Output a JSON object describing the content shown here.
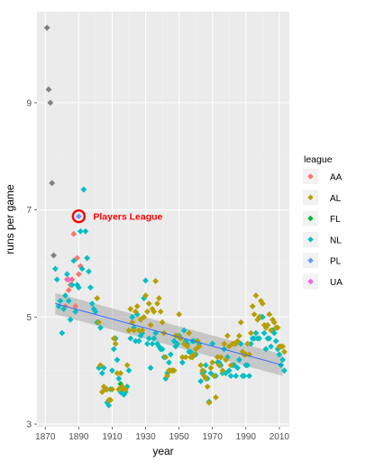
{
  "chart_data": {
    "type": "scatter",
    "xlabel": "year",
    "ylabel": "runs per game",
    "xlim": [
      1865,
      2016
    ],
    "ylim": [
      2.95,
      10.7
    ],
    "x_ticks": [
      1870,
      1890,
      1910,
      1930,
      1950,
      1970,
      1990,
      2010
    ],
    "y_ticks": [
      3,
      5,
      7,
      9
    ],
    "grid": true,
    "legend_placement": "right",
    "legend": {
      "title": "league",
      "items": [
        {
          "label": "AA",
          "color": "#F8766D"
        },
        {
          "label": "AL",
          "color": "#B79F00"
        },
        {
          "label": "FL",
          "color": "#00BA38"
        },
        {
          "label": "NL",
          "color": "#00BFC4"
        },
        {
          "label": "PL",
          "color": "#619CFF"
        },
        {
          "label": "UA",
          "color": "#F564E3"
        }
      ]
    },
    "colors": {
      "unassigned": "#808080",
      "trend_line": "#3366FF",
      "confidence_band": "#999999",
      "annotation": "#FF0000",
      "panel_background": "#EBEBEB",
      "grid": "#FFFFFF"
    },
    "annotation": {
      "label": "Players League",
      "x": 1890,
      "y": 6.88
    },
    "trend": {
      "x": [
        1876,
        2012
      ],
      "y": [
        5.25,
        4.1
      ],
      "band_halfwidth_ends": 0.2
    },
    "series": [
      {
        "name": "",
        "league": "none",
        "points": [
          [
            1871,
            10.4
          ],
          [
            1872,
            9.25
          ],
          [
            1873,
            9.0
          ],
          [
            1874,
            7.5
          ],
          [
            1875,
            6.15
          ]
        ]
      },
      {
        "name": "",
        "league": "AA",
        "points": [
          [
            1882,
            5.2
          ],
          [
            1883,
            5.7
          ],
          [
            1884,
            5.5
          ],
          [
            1885,
            5.6
          ],
          [
            1886,
            5.7
          ],
          [
            1887,
            6.55
          ],
          [
            1888,
            5.2
          ],
          [
            1889,
            6.1
          ],
          [
            1890,
            5.8
          ],
          [
            1891,
            5.95
          ]
        ]
      },
      {
        "name": "",
        "league": "UA",
        "points": [
          [
            1884,
            5.7
          ]
        ]
      },
      {
        "name": "",
        "league": "PL",
        "points": [
          [
            1890,
            6.88
          ]
        ]
      },
      {
        "name": "",
        "league": "FL",
        "points": [
          [
            1914,
            3.65
          ],
          [
            1915,
            3.75
          ]
        ]
      },
      {
        "name": "",
        "league": "NL",
        "points": [
          [
            1876,
            5.9
          ],
          [
            1877,
            5.7
          ],
          [
            1878,
            5.2
          ],
          [
            1879,
            5.3
          ],
          [
            1880,
            4.7
          ],
          [
            1881,
            5.15
          ],
          [
            1882,
            5.4
          ],
          [
            1883,
            5.8
          ],
          [
            1884,
            5.3
          ],
          [
            1885,
            4.95
          ],
          [
            1886,
            5.6
          ],
          [
            1887,
            6.05
          ],
          [
            1888,
            5.1
          ],
          [
            1889,
            5.6
          ],
          [
            1890,
            5.55
          ],
          [
            1891,
            6.6
          ],
          [
            1892,
            5.9
          ],
          [
            1893,
            7.38
          ],
          [
            1894,
            6.6
          ],
          [
            1895,
            6.1
          ],
          [
            1896,
            5.85
          ],
          [
            1897,
            5.55
          ],
          [
            1898,
            5.25
          ],
          [
            1899,
            5.15
          ],
          [
            1900,
            5.1
          ],
          [
            1901,
            4.9
          ],
          [
            1902,
            4.05
          ],
          [
            1903,
            4.8
          ],
          [
            1904,
            3.95
          ],
          [
            1905,
            4.05
          ],
          [
            1906,
            3.65
          ],
          [
            1907,
            3.4
          ],
          [
            1908,
            3.35
          ],
          [
            1909,
            3.65
          ],
          [
            1910,
            4.0
          ],
          [
            1911,
            4.4
          ],
          [
            1912,
            4.6
          ],
          [
            1913,
            4.2
          ],
          [
            1914,
            3.85
          ],
          [
            1915,
            3.6
          ],
          [
            1916,
            3.6
          ],
          [
            1917,
            3.55
          ],
          [
            1918,
            3.6
          ],
          [
            1919,
            3.7
          ],
          [
            1920,
            4.0
          ],
          [
            1921,
            4.6
          ],
          [
            1922,
            5.0
          ],
          [
            1923,
            4.8
          ],
          [
            1924,
            4.55
          ],
          [
            1925,
            5.05
          ],
          [
            1926,
            4.55
          ],
          [
            1927,
            4.65
          ],
          [
            1928,
            4.7
          ],
          [
            1929,
            5.35
          ],
          [
            1930,
            5.68
          ],
          [
            1931,
            4.5
          ],
          [
            1932,
            4.6
          ],
          [
            1933,
            4.05
          ],
          [
            1934,
            4.5
          ],
          [
            1935,
            4.6
          ],
          [
            1936,
            4.7
          ],
          [
            1937,
            4.5
          ],
          [
            1938,
            4.45
          ],
          [
            1939,
            4.4
          ],
          [
            1940,
            4.4
          ],
          [
            1941,
            4.25
          ],
          [
            1942,
            3.85
          ],
          [
            1943,
            3.95
          ],
          [
            1944,
            4.15
          ],
          [
            1945,
            4.3
          ],
          [
            1946,
            4.0
          ],
          [
            1947,
            4.55
          ],
          [
            1948,
            4.45
          ],
          [
            1949,
            4.5
          ],
          [
            1950,
            4.65
          ],
          [
            1951,
            4.6
          ],
          [
            1952,
            4.15
          ],
          [
            1953,
            4.75
          ],
          [
            1954,
            4.55
          ],
          [
            1955,
            4.5
          ],
          [
            1956,
            4.35
          ],
          [
            1957,
            4.35
          ],
          [
            1958,
            4.55
          ],
          [
            1959,
            4.55
          ],
          [
            1960,
            4.3
          ],
          [
            1961,
            4.55
          ],
          [
            1962,
            4.5
          ],
          [
            1963,
            3.8
          ],
          [
            1964,
            3.95
          ],
          [
            1965,
            3.98
          ],
          [
            1966,
            4.1
          ],
          [
            1967,
            3.85
          ],
          [
            1968,
            3.42
          ],
          [
            1969,
            3.95
          ],
          [
            1970,
            4.5
          ],
          [
            1971,
            3.9
          ],
          [
            1972,
            3.9
          ],
          [
            1973,
            4.15
          ],
          [
            1974,
            4.15
          ],
          [
            1975,
            4.1
          ],
          [
            1976,
            3.95
          ],
          [
            1977,
            4.4
          ],
          [
            1978,
            3.95
          ],
          [
            1979,
            4.25
          ],
          [
            1980,
            4.0
          ],
          [
            1981,
            3.9
          ],
          [
            1982,
            4.1
          ],
          [
            1983,
            4.1
          ],
          [
            1984,
            3.9
          ],
          [
            1985,
            4.05
          ],
          [
            1986,
            4.2
          ],
          [
            1987,
            4.5
          ],
          [
            1988,
            3.9
          ],
          [
            1989,
            3.9
          ],
          [
            1990,
            4.1
          ],
          [
            1991,
            4.1
          ],
          [
            1992,
            3.9
          ],
          [
            1993,
            4.5
          ],
          [
            1994,
            4.6
          ],
          [
            1995,
            4.6
          ],
          [
            1996,
            4.7
          ],
          [
            1997,
            4.6
          ],
          [
            1998,
            4.6
          ],
          [
            1999,
            5.0
          ],
          [
            2000,
            5.0
          ],
          [
            2001,
            4.7
          ],
          [
            2002,
            4.4
          ],
          [
            2003,
            4.6
          ],
          [
            2004,
            4.6
          ],
          [
            2005,
            4.45
          ],
          [
            2006,
            4.75
          ],
          [
            2007,
            4.7
          ],
          [
            2008,
            4.55
          ],
          [
            2009,
            4.4
          ],
          [
            2010,
            4.3
          ],
          [
            2011,
            4.1
          ],
          [
            2012,
            4.2
          ],
          [
            2013,
            4.0
          ]
        ]
      },
      {
        "name": "",
        "league": "AL",
        "points": [
          [
            1901,
            5.35
          ],
          [
            1902,
            4.9
          ],
          [
            1903,
            4.1
          ],
          [
            1904,
            3.6
          ],
          [
            1905,
            3.7
          ],
          [
            1906,
            3.65
          ],
          [
            1907,
            3.65
          ],
          [
            1908,
            3.45
          ],
          [
            1909,
            3.45
          ],
          [
            1910,
            3.65
          ],
          [
            1911,
            4.6
          ],
          [
            1912,
            4.5
          ],
          [
            1913,
            3.95
          ],
          [
            1914,
            3.65
          ],
          [
            1915,
            3.95
          ],
          [
            1916,
            3.7
          ],
          [
            1917,
            3.65
          ],
          [
            1918,
            3.65
          ],
          [
            1919,
            4.1
          ],
          [
            1920,
            4.75
          ],
          [
            1921,
            5.15
          ],
          [
            1922,
            4.9
          ],
          [
            1923,
            4.75
          ],
          [
            1924,
            5.1
          ],
          [
            1925,
            5.2
          ],
          [
            1926,
            4.75
          ],
          [
            1927,
            4.95
          ],
          [
            1928,
            4.75
          ],
          [
            1929,
            5.0
          ],
          [
            1930,
            5.4
          ],
          [
            1931,
            5.1
          ],
          [
            1932,
            5.25
          ],
          [
            1933,
            4.85
          ],
          [
            1934,
            5.15
          ],
          [
            1935,
            5.1
          ],
          [
            1936,
            5.67
          ],
          [
            1937,
            5.25
          ],
          [
            1938,
            5.35
          ],
          [
            1939,
            5.1
          ],
          [
            1940,
            4.9
          ],
          [
            1941,
            4.7
          ],
          [
            1942,
            4.25
          ],
          [
            1943,
            3.9
          ],
          [
            1944,
            4.0
          ],
          [
            1945,
            4.0
          ],
          [
            1946,
            4.0
          ],
          [
            1947,
            4.0
          ],
          [
            1948,
            4.65
          ],
          [
            1949,
            4.65
          ],
          [
            1950,
            5.05
          ],
          [
            1951,
            4.6
          ],
          [
            1952,
            4.25
          ],
          [
            1953,
            4.5
          ],
          [
            1954,
            4.25
          ],
          [
            1955,
            4.45
          ],
          [
            1956,
            4.7
          ],
          [
            1957,
            4.25
          ],
          [
            1958,
            4.25
          ],
          [
            1959,
            4.3
          ],
          [
            1960,
            4.4
          ],
          [
            1961,
            4.55
          ],
          [
            1962,
            4.45
          ],
          [
            1963,
            4.1
          ],
          [
            1964,
            4.0
          ],
          [
            1965,
            3.9
          ],
          [
            1966,
            3.85
          ],
          [
            1967,
            3.7
          ],
          [
            1968,
            3.4
          ],
          [
            1969,
            4.05
          ],
          [
            1970,
            4.15
          ],
          [
            1971,
            3.9
          ],
          [
            1972,
            3.5
          ],
          [
            1973,
            4.25
          ],
          [
            1974,
            4.1
          ],
          [
            1975,
            4.25
          ],
          [
            1976,
            4.0
          ],
          [
            1977,
            4.5
          ],
          [
            1978,
            4.2
          ],
          [
            1979,
            4.65
          ],
          [
            1980,
            4.45
          ],
          [
            1981,
            4.1
          ],
          [
            1982,
            4.5
          ],
          [
            1983,
            4.5
          ],
          [
            1984,
            4.5
          ],
          [
            1985,
            4.55
          ],
          [
            1986,
            4.65
          ],
          [
            1987,
            4.9
          ],
          [
            1988,
            4.35
          ],
          [
            1989,
            4.3
          ],
          [
            1990,
            4.3
          ],
          [
            1991,
            4.5
          ],
          [
            1992,
            4.3
          ],
          [
            1993,
            4.7
          ],
          [
            1994,
            5.2
          ],
          [
            1995,
            5.05
          ],
          [
            1996,
            5.4
          ],
          [
            1997,
            4.95
          ],
          [
            1998,
            5.0
          ],
          [
            1999,
            5.3
          ],
          [
            2000,
            5.25
          ],
          [
            2001,
            4.85
          ],
          [
            2002,
            4.8
          ],
          [
            2003,
            4.85
          ],
          [
            2004,
            5.05
          ],
          [
            2005,
            4.75
          ],
          [
            2006,
            4.95
          ],
          [
            2007,
            4.9
          ],
          [
            2008,
            4.8
          ],
          [
            2009,
            4.8
          ],
          [
            2010,
            4.45
          ],
          [
            2011,
            4.45
          ],
          [
            2012,
            4.45
          ],
          [
            2013,
            4.35
          ]
        ]
      }
    ]
  }
}
